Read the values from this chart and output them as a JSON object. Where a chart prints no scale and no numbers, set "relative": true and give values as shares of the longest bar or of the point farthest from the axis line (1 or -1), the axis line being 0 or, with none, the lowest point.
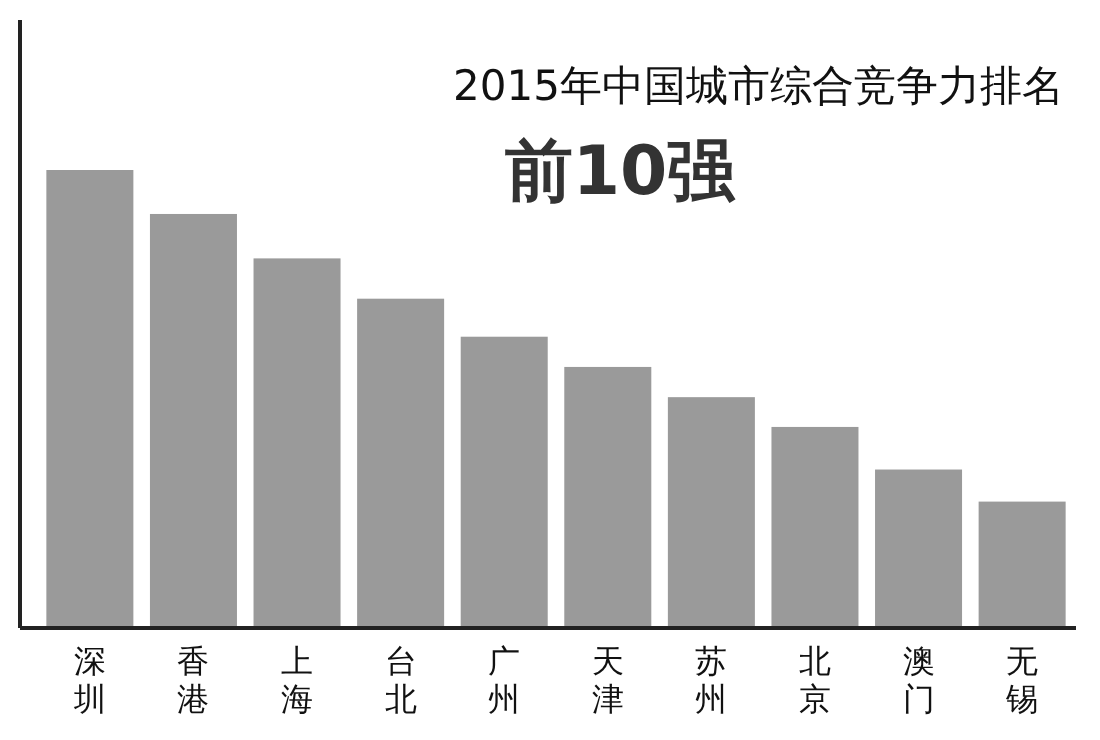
{
  "chart_data": {
    "type": "bar",
    "title": "2015年中国城市综合竞争力排名",
    "subtitle": "前10强",
    "relative": true,
    "categories": [
      "深圳",
      "香港",
      "上海",
      "台北",
      "广州",
      "天津",
      "苏州",
      "北京",
      "澳门",
      "无锡"
    ],
    "values": [
      1,
      0.904,
      0.807,
      0.719,
      0.636,
      0.57,
      0.504,
      0.439,
      0.346,
      0.276
    ],
    "color": "#9a9a9a"
  }
}
